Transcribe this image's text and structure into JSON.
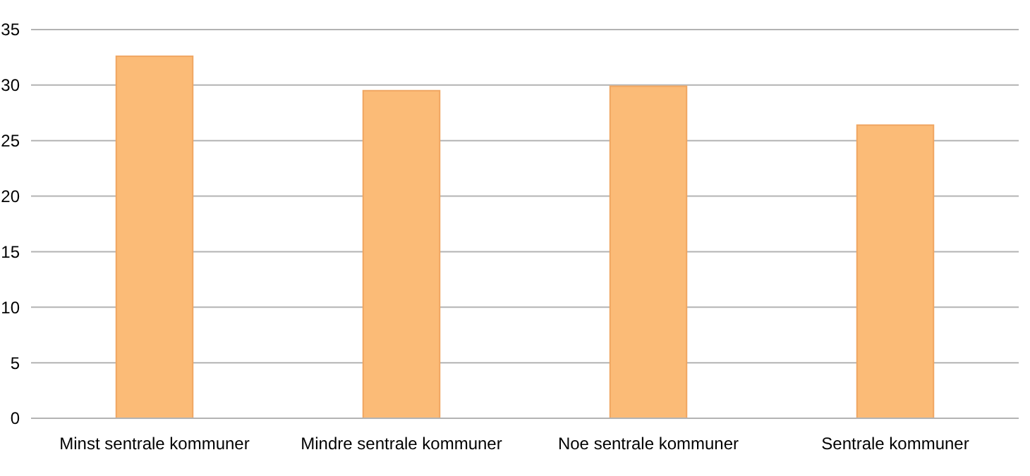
{
  "chart_data": {
    "type": "bar",
    "categories": [
      "Minst sentrale kommuner",
      "Mindre sentrale kommuner",
      "Noe sentrale kommuner",
      "Sentrale kommuner"
    ],
    "values": [
      32.6,
      29.5,
      29.9,
      26.4
    ],
    "color": "#fbbb77",
    "ylim": [
      0,
      35
    ],
    "yticks": [
      0,
      5,
      10,
      15,
      20,
      25,
      30,
      35
    ],
    "grid": "y"
  }
}
